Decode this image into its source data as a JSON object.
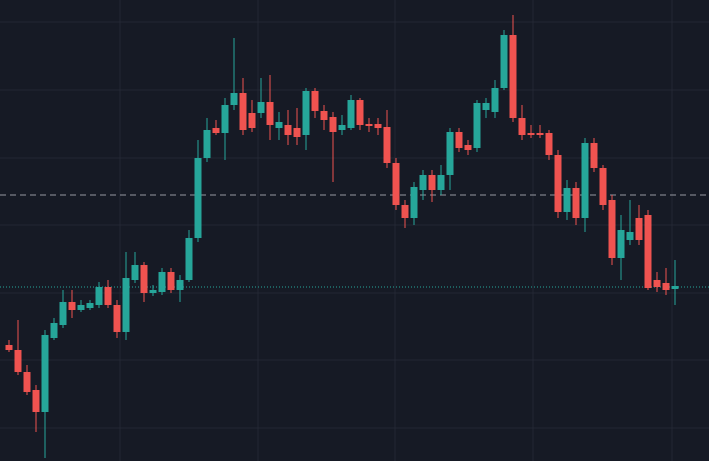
{
  "chart_data": {
    "type": "candlestick",
    "ylim": [
      0,
      461
    ],
    "up_color": "#26a69a",
    "down_color": "#ef5350",
    "open": [
      116,
      111,
      89,
      71,
      49,
      123,
      136,
      159,
      151,
      153,
      156,
      174,
      156,
      129,
      181,
      196,
      168,
      169,
      189,
      171,
      181,
      223,
      303,
      333,
      328,
      356,
      368,
      348,
      348,
      359,
      333,
      336,
      333,
      326,
      370,
      350,
      344,
      331,
      333,
      361,
      337,
      337,
      334,
      298,
      256,
      243,
      271,
      286,
      271,
      286,
      329,
      316,
      313,
      351,
      349,
      373,
      426,
      343,
      328,
      328,
      328,
      306,
      249,
      273,
      243,
      318,
      293,
      261,
      203,
      221,
      243,
      246,
      181,
      178,
      172
    ],
    "high": [
      121,
      141,
      96,
      76,
      131,
      143,
      171,
      171,
      161,
      161,
      179,
      181,
      161,
      209,
      209,
      199,
      176,
      193,
      193,
      186,
      231,
      321,
      343,
      341,
      363,
      423,
      383,
      361,
      383,
      386,
      349,
      351,
      353,
      373,
      373,
      356,
      349,
      346,
      366,
      363,
      343,
      343,
      351,
      303,
      261,
      279,
      291,
      291,
      296,
      333,
      333,
      321,
      361,
      363,
      381,
      431,
      446,
      356,
      336,
      336,
      331,
      311,
      281,
      279,
      323,
      323,
      296,
      266,
      246,
      261,
      256,
      251,
      189,
      193,
      201
    ],
    "low": [
      109,
      86,
      66,
      29,
      3,
      121,
      133,
      143,
      149,
      151,
      153,
      153,
      123,
      121,
      178,
      159,
      165,
      166,
      168,
      159,
      179,
      219,
      299,
      326,
      301,
      351,
      326,
      329,
      343,
      321,
      321,
      316,
      316,
      311,
      343,
      331,
      279,
      326,
      331,
      331,
      329,
      326,
      293,
      251,
      233,
      236,
      261,
      259,
      266,
      271,
      309,
      306,
      309,
      343,
      343,
      371,
      339,
      321,
      323,
      323,
      301,
      243,
      241,
      236,
      229,
      289,
      251,
      196,
      181,
      216,
      216,
      171,
      169,
      166,
      156
    ],
    "close": [
      111,
      89,
      69,
      49,
      126,
      138,
      159,
      151,
      156,
      158,
      174,
      156,
      129,
      183,
      196,
      168,
      171,
      189,
      171,
      181,
      223,
      303,
      331,
      328,
      356,
      368,
      331,
      333,
      359,
      336,
      339,
      326,
      324,
      370,
      350,
      341,
      329,
      336,
      361,
      336,
      335,
      333,
      298,
      256,
      243,
      274,
      286,
      271,
      286,
      329,
      313,
      311,
      358,
      358,
      373,
      426,
      343,
      326,
      326,
      326,
      306,
      249,
      273,
      243,
      318,
      293,
      256,
      203,
      231,
      229,
      221,
      173,
      174,
      171,
      175
    ],
    "price_lines": [
      {
        "value": 266,
        "color": "#9598a1",
        "style": "dashed"
      },
      {
        "value": 174,
        "color": "#26a69a",
        "style": "dotted"
      }
    ]
  }
}
